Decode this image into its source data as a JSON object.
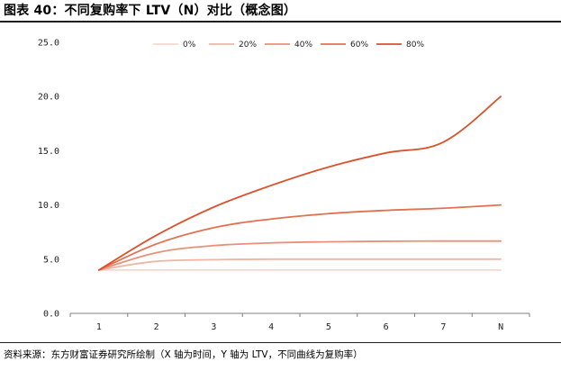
{
  "figure": {
    "title": "图表 40：不同复购率下 LTV（N）对比（概念图）",
    "source": "资料来源：东方财富证券研究所绘制（X 轴为时间，Y 轴为 LTV，不同曲线为复购率）"
  },
  "chart_data": {
    "type": "line",
    "title": "",
    "xlabel": "",
    "ylabel": "",
    "categories": [
      "1",
      "2",
      "3",
      "4",
      "5",
      "6",
      "7",
      "N"
    ],
    "ylim": [
      0,
      25
    ],
    "yticks": [
      "0.0",
      "5.0",
      "10.0",
      "15.0",
      "20.0",
      "25.0"
    ],
    "grid": false,
    "legend": "top-center",
    "series": [
      {
        "name": "0%",
        "color": "#f6d8cf",
        "values": [
          4.0,
          4.0,
          4.0,
          4.0,
          4.0,
          4.0,
          4.0,
          4.0
        ]
      },
      {
        "name": "20%",
        "color": "#f0b5a4",
        "values": [
          4.0,
          4.8,
          4.95,
          5.0,
          5.0,
          5.0,
          5.0,
          5.0
        ]
      },
      {
        "name": "40%",
        "color": "#ea9078",
        "values": [
          4.0,
          5.6,
          6.25,
          6.5,
          6.6,
          6.65,
          6.67,
          6.67
        ]
      },
      {
        "name": "60%",
        "color": "#e3704f",
        "values": [
          4.0,
          6.4,
          7.9,
          8.7,
          9.2,
          9.5,
          9.7,
          10.0
        ]
      },
      {
        "name": "80%",
        "color": "#d9532c",
        "values": [
          4.0,
          7.2,
          9.8,
          11.8,
          13.5,
          14.8,
          15.8,
          20.0
        ]
      }
    ]
  }
}
